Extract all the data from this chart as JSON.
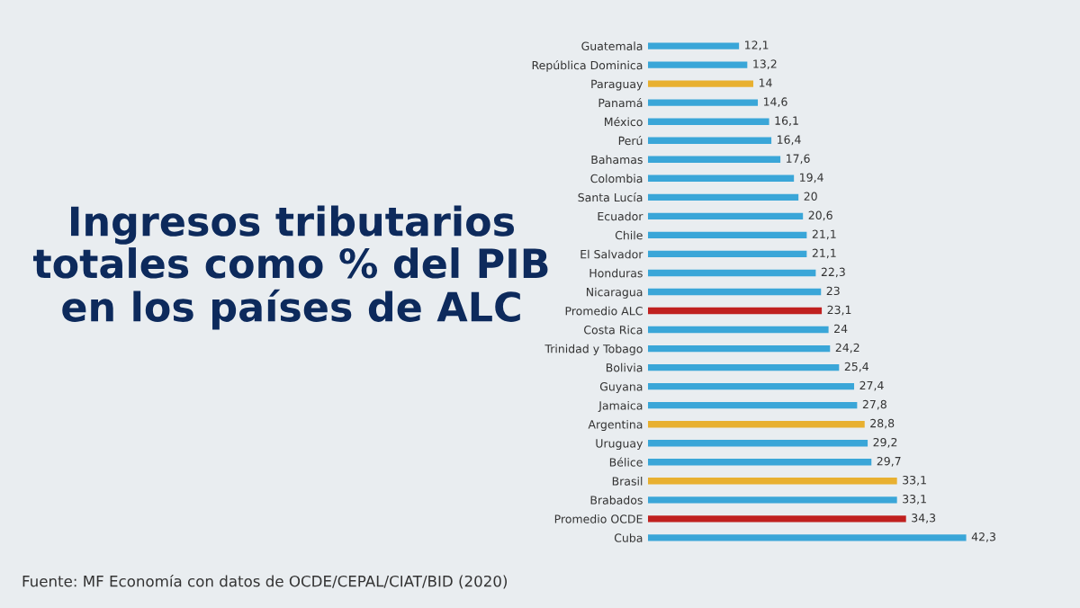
{
  "chart_data": {
    "type": "bar",
    "orientation": "horizontal",
    "title": "Ingresos tributarios totales como % del PIB en los países de ALC",
    "categories": [
      "Guatemala",
      "República Dominica",
      "Paraguay",
      "Panamá",
      "México",
      "Perú",
      "Bahamas",
      "Colombia",
      "Santa Lucía",
      "Ecuador",
      "Chile",
      "El Salvador",
      "Honduras",
      "Nicaragua",
      "Promedio ALC",
      "Costa Rica",
      "Trinidad y Tobago",
      "Bolivia",
      "Guyana",
      "Jamaica",
      "Argentina",
      "Uruguay",
      "Bélice",
      "Brasil",
      "Brabados",
      "Promedio OCDE",
      "Cuba"
    ],
    "values": [
      12.1,
      13.2,
      14,
      14.6,
      16.1,
      16.4,
      17.6,
      19.4,
      20,
      20.6,
      21.1,
      21.1,
      22.3,
      23,
      23.1,
      24,
      24.2,
      25.4,
      27.4,
      27.8,
      28.8,
      29.2,
      29.7,
      33.1,
      33.1,
      34.3,
      42.3
    ],
    "value_labels": [
      "12,1",
      "13,2",
      "14",
      "14,6",
      "16,1",
      "16,4",
      "17,6",
      "19,4",
      "20",
      "20,6",
      "21,1",
      "21,1",
      "22,3",
      "23",
      "23,1",
      "24",
      "24,2",
      "25,4",
      "27,4",
      "27,8",
      "28,8",
      "29,2",
      "29,7",
      "33,1",
      "33,1",
      "34,3",
      "42,3"
    ],
    "colors": [
      "#3aa6d8",
      "#3aa6d8",
      "#e8b030",
      "#3aa6d8",
      "#3aa6d8",
      "#3aa6d8",
      "#3aa6d8",
      "#3aa6d8",
      "#3aa6d8",
      "#3aa6d8",
      "#3aa6d8",
      "#3aa6d8",
      "#3aa6d8",
      "#3aa6d8",
      "#c0201f",
      "#3aa6d8",
      "#3aa6d8",
      "#3aa6d8",
      "#3aa6d8",
      "#3aa6d8",
      "#e8b030",
      "#3aa6d8",
      "#3aa6d8",
      "#e8b030",
      "#3aa6d8",
      "#c0201f",
      "#3aa6d8"
    ],
    "annotations": [
      "Fuente: MF Economía con datos de OCDE/CEPAL/CIAT/BID (2020)"
    ],
    "grid": false,
    "legend": false
  }
}
